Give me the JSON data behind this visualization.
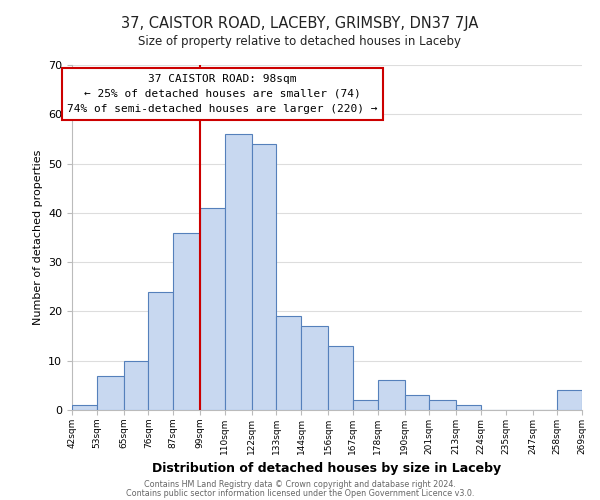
{
  "title": "37, CAISTOR ROAD, LACEBY, GRIMSBY, DN37 7JA",
  "subtitle": "Size of property relative to detached houses in Laceby",
  "xlabel": "Distribution of detached houses by size in Laceby",
  "ylabel": "Number of detached properties",
  "bar_left_edges": [
    42,
    53,
    65,
    76,
    87,
    99,
    110,
    122,
    133,
    144,
    156,
    167,
    178,
    190,
    201,
    213,
    224,
    235,
    247,
    258
  ],
  "bar_heights": [
    1,
    7,
    10,
    24,
    36,
    41,
    56,
    54,
    19,
    17,
    13,
    2,
    6,
    3,
    2,
    1,
    0,
    0,
    0,
    4
  ],
  "bar_widths": [
    11,
    12,
    11,
    11,
    12,
    11,
    12,
    11,
    11,
    12,
    11,
    11,
    12,
    11,
    12,
    11,
    11,
    12,
    11,
    11
  ],
  "tick_labels": [
    "42sqm",
    "53sqm",
    "65sqm",
    "76sqm",
    "87sqm",
    "99sqm",
    "110sqm",
    "122sqm",
    "133sqm",
    "144sqm",
    "156sqm",
    "167sqm",
    "178sqm",
    "190sqm",
    "201sqm",
    "213sqm",
    "224sqm",
    "235sqm",
    "247sqm",
    "258sqm",
    "269sqm"
  ],
  "bar_color": "#c8d8f0",
  "bar_edge_color": "#5580bb",
  "vline_x": 99,
  "vline_color": "#cc0000",
  "ylim": [
    0,
    70
  ],
  "yticks": [
    0,
    10,
    20,
    30,
    40,
    50,
    60,
    70
  ],
  "annotation_title": "37 CAISTOR ROAD: 98sqm",
  "annotation_line1": "← 25% of detached houses are smaller (74)",
  "annotation_line2": "74% of semi-detached houses are larger (220) →",
  "annotation_box_color": "#ffffff",
  "annotation_box_edge": "#cc0000",
  "footer1": "Contains HM Land Registry data © Crown copyright and database right 2024.",
  "footer2": "Contains public sector information licensed under the Open Government Licence v3.0.",
  "bg_color": "#ffffff",
  "grid_color": "#dddddd"
}
